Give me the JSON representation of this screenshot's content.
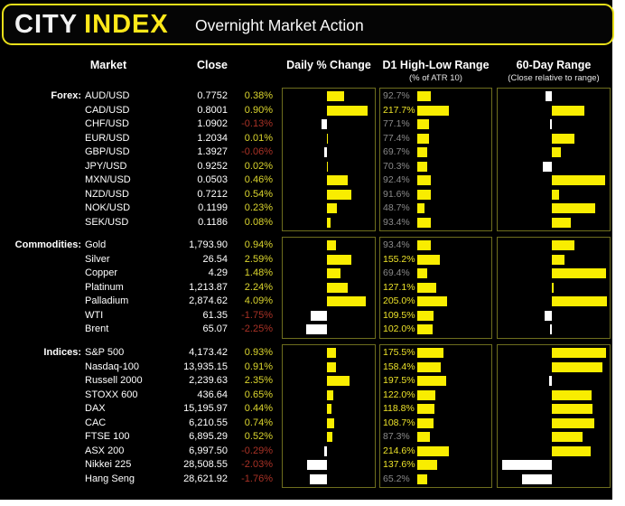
{
  "header": {
    "logo_primary": "CITY",
    "logo_accent": "INDEX",
    "title": "Overnight Market Action"
  },
  "columns": {
    "market": "Market",
    "close": "Close",
    "daily": "Daily % Change",
    "d1": "D1 High-Low Range",
    "d1_sub": "(% of ATR 10)",
    "range60": "60-Day Range",
    "range60_sub": "(Close relative to range)"
  },
  "colors": {
    "background": "#000000",
    "accent": "#f9ed00",
    "negative_bar": "#ffffff",
    "positive_text": "#dcd62e",
    "negative_text": "#a93226",
    "d1_high_text": "#ede32a",
    "d1_low_text": "#8a8a8a",
    "panel_border": "#6e6e1e",
    "header_border": "#e8df1a"
  },
  "chart_data": {
    "type": "table",
    "title": "Overnight Market Action",
    "sections": [
      {
        "name": "Forex:",
        "daily_axis_max": 0.95,
        "rows": [
          {
            "market": "AUD/USD",
            "close": "0.7752",
            "change_pct": 0.38,
            "change_label": "0.38%",
            "d1_pct": 92.7,
            "d1_label": "92.7%",
            "range60_frac": -0.11
          },
          {
            "market": "CAD/USD",
            "close": "0.8001",
            "change_pct": 0.9,
            "change_label": "0.90%",
            "d1_pct": 217.7,
            "d1_label": "217.7%",
            "range60_frac": 0.59
          },
          {
            "market": "CHF/USD",
            "close": "1.0902",
            "change_pct": -0.13,
            "change_label": "-0.13%",
            "d1_pct": 77.1,
            "d1_label": "77.1%",
            "range60_frac": -0.03
          },
          {
            "market": "EUR/USD",
            "close": "1.2034",
            "change_pct": 0.01,
            "change_label": "0.01%",
            "d1_pct": 77.4,
            "d1_label": "77.4%",
            "range60_frac": 0.41
          },
          {
            "market": "GBP/USD",
            "close": "1.3927",
            "change_pct": -0.06,
            "change_label": "-0.06%",
            "d1_pct": 69.7,
            "d1_label": "69.7%",
            "range60_frac": 0.16
          },
          {
            "market": "JPY/USD",
            "close": "0.9252",
            "change_pct": 0.02,
            "change_label": "0.02%",
            "d1_pct": 70.3,
            "d1_label": "70.3%",
            "range60_frac": -0.16
          },
          {
            "market": "MXN/USD",
            "close": "0.0503",
            "change_pct": 0.46,
            "change_label": "0.46%",
            "d1_pct": 92.4,
            "d1_label": "92.4%",
            "range60_frac": 0.96
          },
          {
            "market": "NZD/USD",
            "close": "0.7212",
            "change_pct": 0.54,
            "change_label": "0.54%",
            "d1_pct": 91.6,
            "d1_label": "91.6%",
            "range60_frac": 0.13
          },
          {
            "market": "NOK/USD",
            "close": "0.1199",
            "change_pct": 0.23,
            "change_label": "0.23%",
            "d1_pct": 48.7,
            "d1_label": "48.7%",
            "range60_frac": 0.79
          },
          {
            "market": "SEK/USD",
            "close": "0.1186",
            "change_pct": 0.08,
            "change_label": "0.08%",
            "d1_pct": 93.4,
            "d1_label": "93.4%",
            "range60_frac": 0.35
          }
        ]
      },
      {
        "name": "Commodities:",
        "daily_axis_max": 4.5,
        "rows": [
          {
            "market": "Gold",
            "close": "1,793.90",
            "change_pct": 0.94,
            "change_label": "0.94%",
            "d1_pct": 93.4,
            "d1_label": "93.4%",
            "range60_frac": 0.41
          },
          {
            "market": "Silver",
            "close": "26.54",
            "change_pct": 2.59,
            "change_label": "2.59%",
            "d1_pct": 155.2,
            "d1_label": "155.2%",
            "range60_frac": 0.23
          },
          {
            "market": "Copper",
            "close": "4.29",
            "change_pct": 1.48,
            "change_label": "1.48%",
            "d1_pct": 69.4,
            "d1_label": "69.4%",
            "range60_frac": 0.98
          },
          {
            "market": "Platinum",
            "close": "1,213.87",
            "change_pct": 2.24,
            "change_label": "2.24%",
            "d1_pct": 127.1,
            "d1_label": "127.1%",
            "range60_frac": 0.01
          },
          {
            "market": "Palladium",
            "close": "2,874.62",
            "change_pct": 4.09,
            "change_label": "4.09%",
            "d1_pct": 205.0,
            "d1_label": "205.0%",
            "range60_frac": 1.0
          },
          {
            "market": "WTI",
            "close": "61.35",
            "change_pct": -1.75,
            "change_label": "-1.75%",
            "d1_pct": 109.5,
            "d1_label": "109.5%",
            "range60_frac": -0.13
          },
          {
            "market": "Brent",
            "close": "65.07",
            "change_pct": -2.25,
            "change_label": "-2.25%",
            "d1_pct": 102.0,
            "d1_label": "102.0%",
            "range60_frac": -0.03
          }
        ]
      },
      {
        "name": "Indices:",
        "daily_axis_max": 4.4,
        "rows": [
          {
            "market": "S&P 500",
            "close": "4,173.42",
            "change_pct": 0.93,
            "change_label": "0.93%",
            "d1_pct": 175.5,
            "d1_label": "175.5%",
            "range60_frac": 0.98
          },
          {
            "market": "Nasdaq-100",
            "close": "13,935.15",
            "change_pct": 0.91,
            "change_label": "0.91%",
            "d1_pct": 158.4,
            "d1_label": "158.4%",
            "range60_frac": 0.91
          },
          {
            "market": "Russell 2000",
            "close": "2,239.63",
            "change_pct": 2.35,
            "change_label": "2.35%",
            "d1_pct": 197.5,
            "d1_label": "197.5%",
            "range60_frac": -0.05
          },
          {
            "market": "STOXX 600",
            "close": "436.64",
            "change_pct": 0.65,
            "change_label": "0.65%",
            "d1_pct": 122.0,
            "d1_label": "122.0%",
            "range60_frac": 0.72
          },
          {
            "market": "DAX",
            "close": "15,195.97",
            "change_pct": 0.44,
            "change_label": "0.44%",
            "d1_pct": 118.8,
            "d1_label": "118.8%",
            "range60_frac": 0.74
          },
          {
            "market": "CAC",
            "close": "6,210.55",
            "change_pct": 0.74,
            "change_label": "0.74%",
            "d1_pct": 108.7,
            "d1_label": "108.7%",
            "range60_frac": 0.77
          },
          {
            "market": "FTSE 100",
            "close": "6,895.29",
            "change_pct": 0.52,
            "change_label": "0.52%",
            "d1_pct": 87.3,
            "d1_label": "87.3%",
            "range60_frac": 0.55
          },
          {
            "market": "ASX 200",
            "close": "6,997.50",
            "change_pct": -0.29,
            "change_label": "-0.29%",
            "d1_pct": 214.6,
            "d1_label": "214.6%",
            "range60_frac": 0.7
          },
          {
            "market": "Nikkei 225",
            "close": "28,508.55",
            "change_pct": -2.03,
            "change_label": "-2.03%",
            "d1_pct": 137.6,
            "d1_label": "137.6%",
            "range60_frac": -0.9
          },
          {
            "market": "Hang Seng",
            "close": "28,621.92",
            "change_pct": -1.76,
            "change_label": "-1.76%",
            "d1_pct": 65.2,
            "d1_label": "65.2%",
            "range60_frac": -0.54
          }
        ]
      }
    ]
  }
}
